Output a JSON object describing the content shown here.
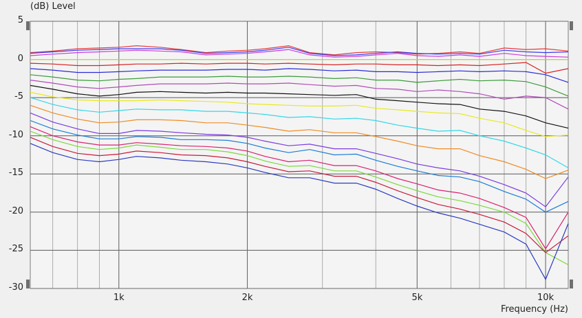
{
  "chart_data": {
    "type": "line",
    "ylabel": "(dB)  Level",
    "xlabel": "Frequency  (Hz)",
    "xscale": "log",
    "xlim": [
      620,
      11300
    ],
    "ylim": [
      -30,
      5
    ],
    "grid": true,
    "yticks": [
      5,
      0,
      -5,
      -10,
      -15,
      -20,
      -25,
      -30
    ],
    "ytick_labels": [
      "5",
      "0",
      "-5",
      "-10",
      "-15",
      "-20",
      "-25",
      "-30"
    ],
    "xticks": [
      1000,
      2000,
      5000,
      10000
    ],
    "xtick_labels": [
      "1k",
      "2k",
      "5k",
      "10k"
    ],
    "x": [
      620,
      700,
      800,
      900,
      1000,
      1100,
      1250,
      1400,
      1600,
      1800,
      2000,
      2200,
      2500,
      2800,
      3200,
      3600,
      4000,
      4500,
      5000,
      5600,
      6300,
      7000,
      8000,
      9000,
      10000,
      11300
    ],
    "series": [
      {
        "color": "#e63a3a",
        "values": [
          0.9,
          1.1,
          1.4,
          1.5,
          1.6,
          1.8,
          1.6,
          1.3,
          0.9,
          1.1,
          1.2,
          1.4,
          1.8,
          0.9,
          0.6,
          0.9,
          1.0,
          0.9,
          0.7,
          0.8,
          1.0,
          0.8,
          1.5,
          1.3,
          1.4,
          1.1
        ]
      },
      {
        "color": "#3a3af0",
        "values": [
          0.8,
          1.0,
          1.2,
          1.3,
          1.4,
          1.4,
          1.4,
          1.2,
          0.8,
          0.9,
          1.0,
          1.2,
          1.6,
          0.8,
          0.5,
          0.6,
          0.8,
          1.0,
          0.8,
          0.7,
          0.8,
          0.7,
          1.2,
          1.0,
          0.9,
          1.0
        ]
      },
      {
        "color": "#cc3ad8",
        "values": [
          0.5,
          0.7,
          0.9,
          1.0,
          1.1,
          1.2,
          1.1,
          1.0,
          0.6,
          0.7,
          0.8,
          1.0,
          1.3,
          0.6,
          0.3,
          0.4,
          0.6,
          0.8,
          0.5,
          0.4,
          0.6,
          0.4,
          0.8,
          0.5,
          0.4,
          0.3
        ]
      },
      {
        "color": "#b8e01a",
        "values": [
          0.0,
          0.0,
          0.0,
          0.0,
          0.0,
          0.0,
          0.0,
          0.0,
          0.0,
          0.0,
          0.0,
          0.0,
          0.0,
          0.0,
          0.0,
          0.0,
          0.0,
          0.0,
          0.0,
          0.0,
          0.0,
          0.0,
          0.0,
          0.0,
          0.0,
          0.0
        ]
      },
      {
        "color": "#d82020",
        "values": [
          -0.5,
          -0.6,
          -0.8,
          -0.8,
          -0.7,
          -0.6,
          -0.6,
          -0.5,
          -0.6,
          -0.5,
          -0.5,
          -0.6,
          -0.5,
          -0.6,
          -0.7,
          -0.6,
          -0.6,
          -0.7,
          -0.7,
          -0.8,
          -0.7,
          -0.8,
          -0.6,
          -0.4,
          -1.8,
          -1.2
        ]
      },
      {
        "color": "#2a2ad8",
        "values": [
          -1.2,
          -1.4,
          -1.7,
          -1.7,
          -1.6,
          -1.5,
          -1.4,
          -1.4,
          -1.4,
          -1.3,
          -1.3,
          -1.4,
          -1.2,
          -1.3,
          -1.5,
          -1.4,
          -1.6,
          -1.6,
          -1.7,
          -1.6,
          -1.5,
          -1.6,
          -1.5,
          -1.6,
          -2.0,
          -3.0
        ]
      },
      {
        "color": "#3a9a3a",
        "values": [
          -2.0,
          -2.3,
          -2.7,
          -2.8,
          -2.6,
          -2.5,
          -2.3,
          -2.3,
          -2.3,
          -2.2,
          -2.3,
          -2.3,
          -2.2,
          -2.3,
          -2.5,
          -2.4,
          -2.7,
          -2.7,
          -3.0,
          -2.8,
          -2.6,
          -2.8,
          -2.7,
          -2.9,
          -3.6,
          -4.8
        ]
      },
      {
        "color": "#b04ab8",
        "values": [
          -2.7,
          -3.1,
          -3.6,
          -3.8,
          -3.6,
          -3.4,
          -3.2,
          -3.2,
          -3.2,
          -3.1,
          -3.2,
          -3.2,
          -3.1,
          -3.3,
          -3.5,
          -3.4,
          -3.8,
          -3.9,
          -4.2,
          -4.0,
          -4.2,
          -4.5,
          -5.2,
          -4.8,
          -5.0,
          -6.5
        ]
      },
      {
        "color": "#111111",
        "values": [
          -3.4,
          -3.9,
          -4.5,
          -4.8,
          -4.6,
          -4.3,
          -4.2,
          -4.3,
          -4.4,
          -4.3,
          -4.4,
          -4.4,
          -4.5,
          -4.6,
          -4.7,
          -4.6,
          -5.2,
          -5.4,
          -5.6,
          -5.8,
          -5.9,
          -6.5,
          -6.8,
          -7.4,
          -8.3,
          -9.0
        ]
      },
      {
        "color": "#e8e820",
        "values": [
          -4.3,
          -4.9,
          -5.3,
          -5.4,
          -5.4,
          -5.4,
          -5.3,
          -5.4,
          -5.5,
          -5.6,
          -5.8,
          -5.9,
          -6.0,
          -6.1,
          -6.1,
          -6.0,
          -6.4,
          -6.6,
          -6.8,
          -7.0,
          -7.1,
          -7.7,
          -8.3,
          -9.3,
          -10.1,
          -9.9
        ]
      },
      {
        "color": "#30d8e8",
        "values": [
          -5.0,
          -5.9,
          -6.6,
          -6.9,
          -6.7,
          -6.5,
          -6.6,
          -6.6,
          -6.8,
          -6.8,
          -7.0,
          -7.2,
          -7.6,
          -7.5,
          -7.8,
          -7.7,
          -8.0,
          -8.6,
          -9.0,
          -9.4,
          -9.3,
          -10.0,
          -10.7,
          -11.6,
          -12.5,
          -14.2
        ]
      },
      {
        "color": "#f08a20",
        "values": [
          -6.0,
          -7.0,
          -7.8,
          -8.3,
          -8.2,
          -7.9,
          -7.9,
          -8.0,
          -8.3,
          -8.3,
          -8.6,
          -8.9,
          -9.4,
          -9.2,
          -9.6,
          -9.6,
          -10.1,
          -10.7,
          -11.3,
          -11.7,
          -11.7,
          -12.6,
          -13.4,
          -14.4,
          -15.6,
          -14.5
        ]
      },
      {
        "color": "#7a3ae0",
        "values": [
          -7.0,
          -8.2,
          -9.1,
          -9.7,
          -9.7,
          -9.3,
          -9.4,
          -9.6,
          -9.8,
          -9.9,
          -10.2,
          -10.7,
          -11.3,
          -11.1,
          -11.7,
          -11.7,
          -12.3,
          -13.0,
          -13.7,
          -14.2,
          -14.6,
          -15.3,
          -16.4,
          -17.5,
          -19.3,
          -15.4
        ]
      },
      {
        "color": "#1a7ad8",
        "values": [
          -8.0,
          -9.1,
          -9.9,
          -10.4,
          -10.4,
          -10.1,
          -10.2,
          -10.5,
          -10.5,
          -10.6,
          -11.0,
          -11.6,
          -12.2,
          -11.8,
          -12.5,
          -12.4,
          -13.2,
          -14.0,
          -14.6,
          -15.2,
          -15.4,
          -16.0,
          -17.3,
          -18.3,
          -20.0,
          -18.6
        ]
      },
      {
        "color": "#d82070",
        "values": [
          -8.8,
          -10.0,
          -10.8,
          -11.2,
          -11.2,
          -10.9,
          -11.1,
          -11.3,
          -11.4,
          -11.6,
          -12.0,
          -12.7,
          -13.4,
          -13.2,
          -13.9,
          -13.9,
          -14.6,
          -15.6,
          -16.3,
          -17.1,
          -17.5,
          -18.2,
          -19.4,
          -20.7,
          -24.8,
          -20.0
        ]
      },
      {
        "color": "#7ad83a",
        "values": [
          -9.4,
          -10.5,
          -11.4,
          -11.8,
          -11.6,
          -11.2,
          -11.5,
          -11.8,
          -11.8,
          -12.1,
          -12.6,
          -13.3,
          -14.0,
          -13.9,
          -14.6,
          -14.6,
          -15.4,
          -16.4,
          -17.2,
          -18.0,
          -18.5,
          -19.1,
          -20.0,
          -21.5,
          -25.3,
          -26.9
        ]
      },
      {
        "color": "#c81a3a",
        "values": [
          -10.2,
          -11.4,
          -12.3,
          -12.6,
          -12.4,
          -12.0,
          -12.2,
          -12.5,
          -12.6,
          -12.9,
          -13.4,
          -14.0,
          -14.7,
          -14.6,
          -15.3,
          -15.3,
          -16.1,
          -17.2,
          -18.1,
          -19.0,
          -19.6,
          -20.3,
          -21.3,
          -22.8,
          -25.3,
          -23.1
        ]
      },
      {
        "color": "#2a3ac0",
        "values": [
          -11.0,
          -12.2,
          -13.1,
          -13.4,
          -13.1,
          -12.7,
          -12.9,
          -13.2,
          -13.4,
          -13.7,
          -14.2,
          -14.8,
          -15.5,
          -15.5,
          -16.2,
          -16.2,
          -17.0,
          -18.2,
          -19.2,
          -20.1,
          -20.8,
          -21.6,
          -22.6,
          -24.2,
          -28.8,
          -21.5
        ]
      }
    ]
  }
}
